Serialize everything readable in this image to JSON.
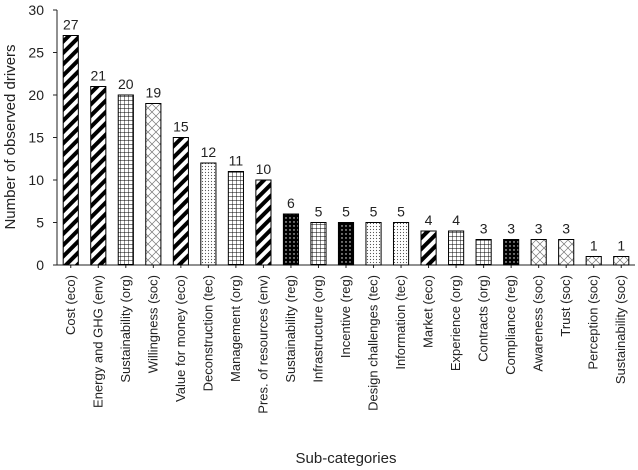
{
  "chart_data": {
    "type": "bar",
    "xlabel": "Sub-categories",
    "ylabel": "Number of observed drivers",
    "ylim": [
      0,
      30
    ],
    "yticks": [
      0,
      5,
      10,
      15,
      20,
      25,
      30
    ],
    "grid": false,
    "categories": [
      "Cost (eco)",
      "Energy and GHG (env)",
      "Sustainability (org)",
      "Willingness (soc)",
      "Value for money (eco)",
      "Deconstruction (tec)",
      "Management (org)",
      "Pres. of resources (env)",
      "Sustainability (reg)",
      "Infrastructure (org)",
      "Incentive (reg)",
      "Design challenges (tec)",
      "Information (tec)",
      "Market (eco)",
      "Experience (org)",
      "Contracts (org)",
      "Compliance (reg)",
      "Awareness (soc)",
      "Trust (soc)",
      "Perception (soc)",
      "Sustainability (soc)"
    ],
    "values": [
      27,
      21,
      20,
      19,
      15,
      12,
      11,
      10,
      6,
      5,
      5,
      5,
      5,
      4,
      4,
      3,
      3,
      3,
      3,
      1,
      1
    ],
    "fill_patterns": {
      "eco": "thick black diagonal stripes",
      "env": "thick black diagonal stripes",
      "org": "square grid",
      "soc": "light diagonal crosshatch",
      "tec": "fine dots",
      "reg": "dense black with white dots"
    }
  }
}
